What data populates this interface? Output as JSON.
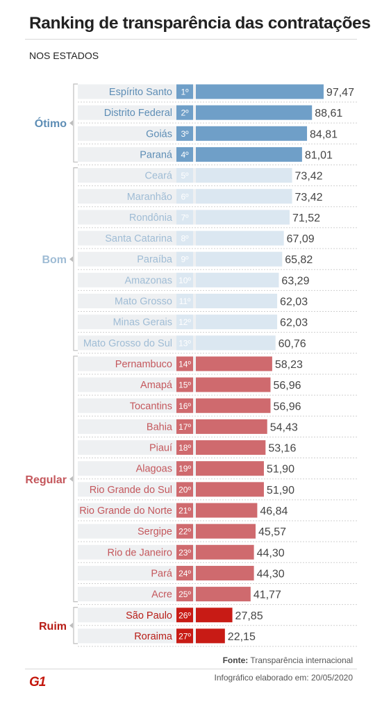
{
  "header": {
    "title": "Ranking de transparência das contratações",
    "subtitle": "NOS ESTADOS"
  },
  "footer": {
    "source_label": "Fonte:",
    "source_value": "Transparência internacional",
    "date_label": "Infográfico elaborado em:",
    "date_value": "20/05/2020",
    "logo": "G1"
  },
  "colors": {
    "otimo": "#6f9fc8",
    "bom": "#dbe7f1",
    "regular": "#cf6a6e",
    "ruim": "#c81b15",
    "row_band": "#eef0f2",
    "divider": "#bdbdbd"
  },
  "chart_data": {
    "type": "bar",
    "orientation": "horizontal",
    "title": "Ranking de transparência das contratações",
    "subtitle": "NOS ESTADOS",
    "xlim": [
      0,
      100
    ],
    "groups": [
      {
        "name": "Ótimo",
        "color": "#6f9fc8",
        "label_color": "#5d8db5",
        "rank_text": "#ffffff",
        "start": 0,
        "end": 3
      },
      {
        "name": "Bom",
        "color": "#dbe7f1",
        "label_color": "#9fbcd5",
        "rank_text": "#ffffff",
        "start": 4,
        "end": 12
      },
      {
        "name": "Regular",
        "color": "#cf6a6e",
        "label_color": "#c4575c",
        "rank_text": "#ffffff",
        "start": 13,
        "end": 24
      },
      {
        "name": "Ruim",
        "color": "#c81b15",
        "label_color": "#b71c16",
        "rank_text": "#ffffff",
        "start": 25,
        "end": 26
      }
    ],
    "categories": [
      "Espírito Santo",
      "Distrito Federal",
      "Goiás",
      "Paraná",
      "Ceará",
      "Maranhão",
      "Rondônia",
      "Santa Catarina",
      "Paraíba",
      "Amazonas",
      "Mato Grosso",
      "Minas Gerais",
      "Mato Grosso do Sul",
      "Pernambuco",
      "Amapá",
      "Tocantins",
      "Bahia",
      "Piauí",
      "Alagoas",
      "Rio Grande do Sul",
      "Rio Grande do Norte",
      "Sergipe",
      "Rio de Janeiro",
      "Pará",
      "Acre",
      "São Paulo",
      "Roraima"
    ],
    "ranks": [
      "1º",
      "2º",
      "3º",
      "4º",
      "5º",
      "6º",
      "7º",
      "8º",
      "9º",
      "10º",
      "11º",
      "12º",
      "13º",
      "14º",
      "15º",
      "16º",
      "17º",
      "18º",
      "19º",
      "20º",
      "21º",
      "22º",
      "23º",
      "24º",
      "25º",
      "26º",
      "27º"
    ],
    "values": [
      97.47,
      88.61,
      84.81,
      81.01,
      73.42,
      73.42,
      71.52,
      67.09,
      65.82,
      63.29,
      62.03,
      62.03,
      60.76,
      58.23,
      56.96,
      56.96,
      54.43,
      53.16,
      51.9,
      51.9,
      46.84,
      45.57,
      44.3,
      44.3,
      41.77,
      27.85,
      22.15
    ],
    "value_labels": [
      "97,47",
      "88,61",
      "84,81",
      "81,01",
      "73,42",
      "73,42",
      "71,52",
      "67,09",
      "65,82",
      "63,29",
      "62,03",
      "62,03",
      "60,76",
      "58,23",
      "56,96",
      "56,96",
      "54,43",
      "53,16",
      "51,90",
      "51,90",
      "46,84",
      "45,57",
      "44,30",
      "44,30",
      "41,77",
      "27,85",
      "22,15"
    ]
  }
}
